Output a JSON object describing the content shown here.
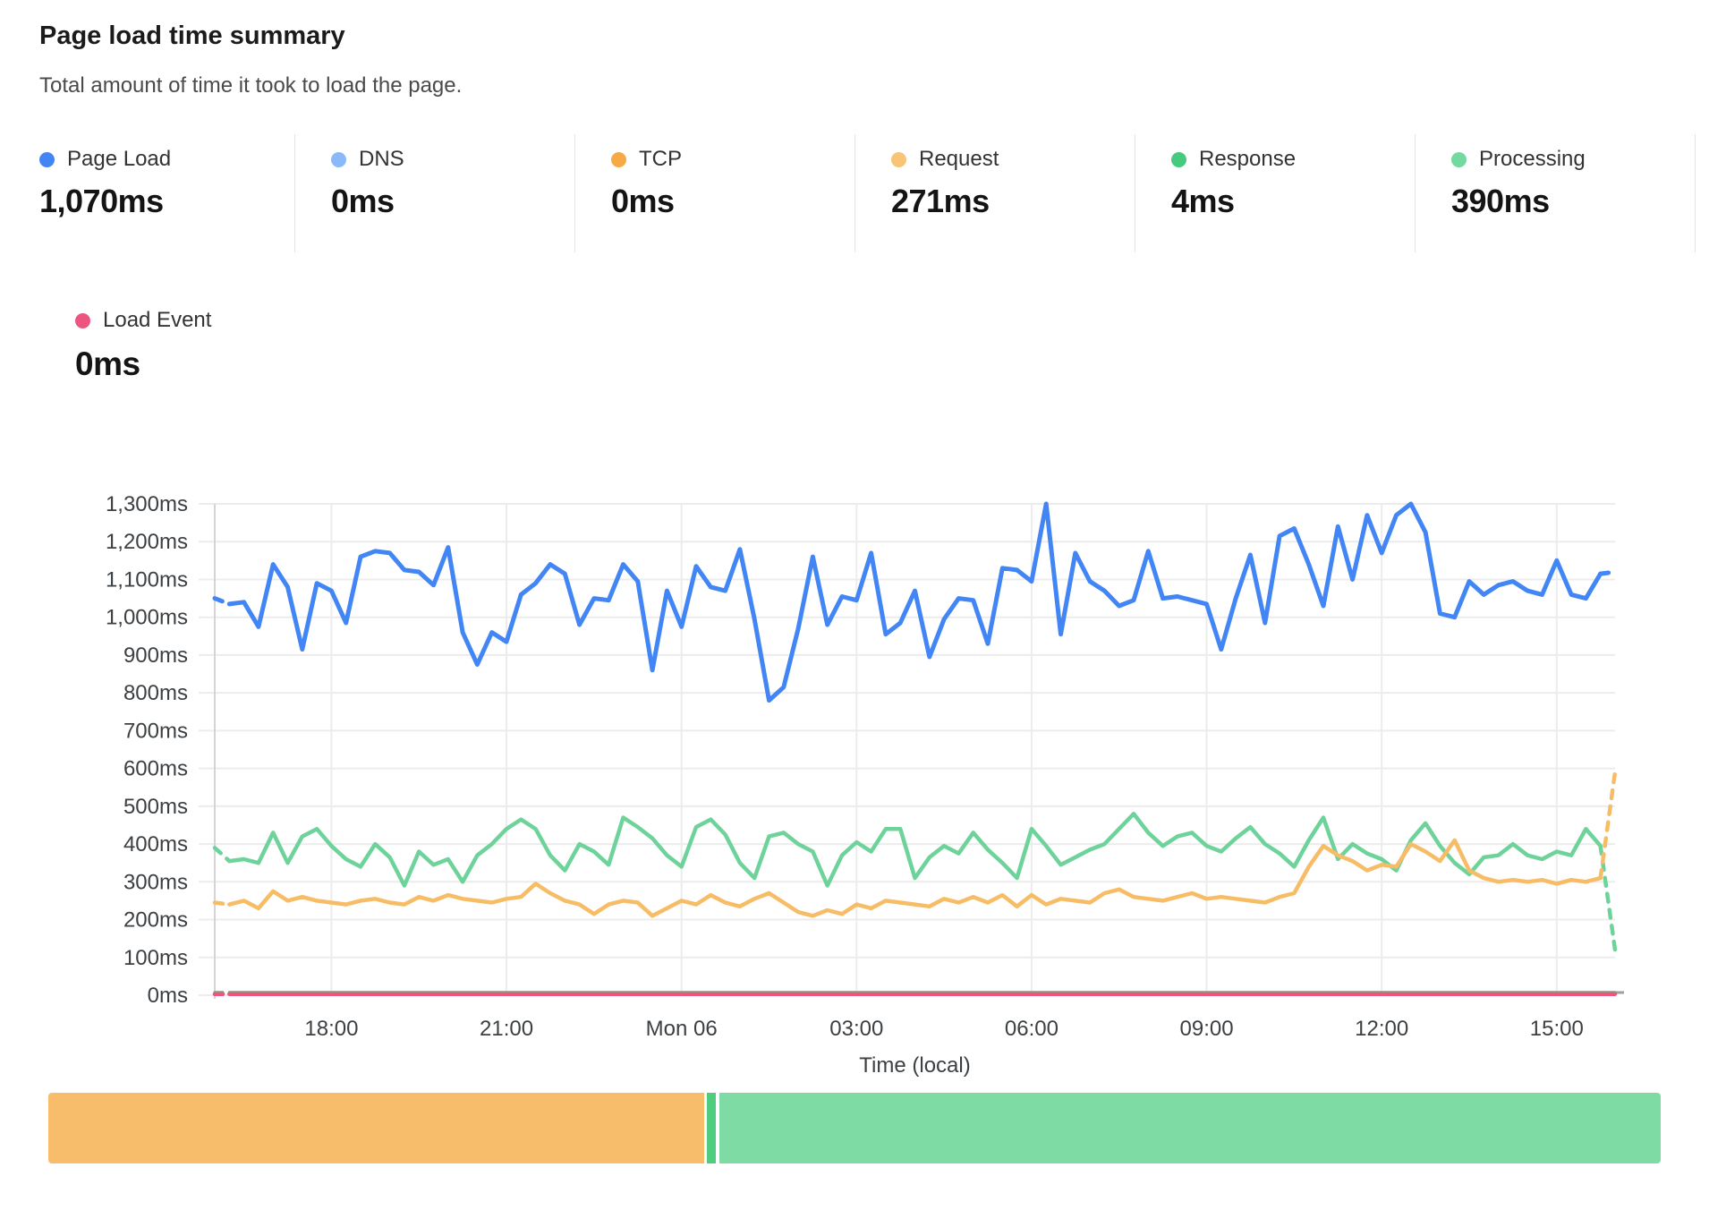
{
  "header": {
    "title": "Page load time summary",
    "subtitle": "Total amount of time it took to load the page."
  },
  "stats": [
    {
      "label": "Page Load",
      "value": "1,070ms",
      "color": "#4285f4"
    },
    {
      "label": "DNS",
      "value": "0ms",
      "color": "#8ab9f9"
    },
    {
      "label": "TCP",
      "value": "0ms",
      "color": "#f5a947"
    },
    {
      "label": "Request",
      "value": "271ms",
      "color": "#f8c577"
    },
    {
      "label": "Response",
      "value": "4ms",
      "color": "#47c97e"
    },
    {
      "label": "Processing",
      "value": "390ms",
      "color": "#74d9a0"
    }
  ],
  "load_event": {
    "label": "Load Event",
    "value": "0ms",
    "color": "#ed5480"
  },
  "chart_data": {
    "type": "line",
    "title": "Page load time summary",
    "xlabel": "Time (local)",
    "ylim": [
      0,
      1300
    ],
    "n": 97,
    "grid": true,
    "y_axis": {
      "min": 0,
      "max": 1300,
      "step": 100,
      "suffix": "ms"
    },
    "x_ticks": [
      {
        "label": "18:00",
        "i": 8
      },
      {
        "label": "21:00",
        "i": 20
      },
      {
        "label": "Mon 06",
        "i": 32
      },
      {
        "label": "03:00",
        "i": 44
      },
      {
        "label": "06:00",
        "i": 56
      },
      {
        "label": "09:00",
        "i": 68
      },
      {
        "label": "12:00",
        "i": 80
      },
      {
        "label": "15:00",
        "i": 92
      }
    ],
    "series": [
      {
        "name": "Page Load",
        "color": "#4285f4",
        "width": 5,
        "dash_first": true,
        "dash_last": true,
        "values": [
          1050,
          1035,
          1040,
          975,
          1140,
          1080,
          915,
          1090,
          1070,
          985,
          1160,
          1175,
          1170,
          1125,
          1120,
          1085,
          1185,
          960,
          875,
          960,
          935,
          1060,
          1090,
          1140,
          1115,
          980,
          1050,
          1045,
          1140,
          1095,
          860,
          1070,
          975,
          1135,
          1080,
          1070,
          1180,
          995,
          780,
          815,
          970,
          1160,
          980,
          1055,
          1045,
          1170,
          955,
          985,
          1070,
          895,
          995,
          1050,
          1045,
          930,
          1130,
          1125,
          1095,
          1300,
          955,
          1170,
          1095,
          1070,
          1030,
          1045,
          1175,
          1050,
          1055,
          1045,
          1035,
          915,
          1050,
          1165,
          985,
          1215,
          1235,
          1140,
          1030,
          1240,
          1100,
          1270,
          1170,
          1270,
          1300,
          1225,
          1010,
          1000,
          1095,
          1060,
          1085,
          1095,
          1070,
          1060,
          1150,
          1060,
          1050,
          1115,
          1120
        ]
      },
      {
        "name": "Processing",
        "color": "#6ed39a",
        "width": 4.5,
        "dash_first": true,
        "dash_last": true,
        "values": [
          390,
          355,
          360,
          350,
          430,
          350,
          420,
          440,
          395,
          360,
          340,
          400,
          365,
          290,
          380,
          345,
          360,
          300,
          370,
          400,
          440,
          465,
          440,
          370,
          330,
          400,
          380,
          345,
          470,
          445,
          415,
          370,
          340,
          445,
          465,
          425,
          350,
          310,
          420,
          430,
          400,
          380,
          290,
          370,
          405,
          380,
          440,
          440,
          310,
          365,
          395,
          375,
          430,
          385,
          350,
          310,
          440,
          395,
          345,
          365,
          385,
          400,
          440,
          480,
          430,
          395,
          420,
          430,
          395,
          380,
          415,
          445,
          400,
          375,
          340,
          410,
          470,
          360,
          400,
          375,
          360,
          330,
          410,
          455,
          395,
          350,
          320,
          365,
          370,
          400,
          370,
          360,
          380,
          370,
          440,
          395,
          120
        ]
      },
      {
        "name": "Request",
        "color": "#f7bc66",
        "width": 4.5,
        "dash_first": true,
        "dash_last": true,
        "values": [
          245,
          240,
          250,
          230,
          275,
          250,
          260,
          250,
          245,
          240,
          250,
          255,
          245,
          240,
          260,
          250,
          265,
          255,
          250,
          245,
          255,
          260,
          295,
          270,
          250,
          240,
          215,
          240,
          250,
          245,
          210,
          230,
          250,
          240,
          265,
          245,
          235,
          255,
          270,
          245,
          220,
          210,
          225,
          215,
          240,
          230,
          250,
          245,
          240,
          235,
          255,
          245,
          260,
          245,
          265,
          235,
          265,
          240,
          255,
          250,
          245,
          270,
          280,
          260,
          255,
          250,
          260,
          270,
          255,
          260,
          255,
          250,
          245,
          260,
          270,
          340,
          395,
          370,
          355,
          330,
          345,
          340,
          400,
          380,
          355,
          410,
          330,
          310,
          300,
          305,
          300,
          305,
          295,
          305,
          300,
          310,
          590
        ]
      },
      {
        "name": "Response",
        "color": "#52c982",
        "width": 3,
        "dash_first": true,
        "dash_last": false,
        "flat": 8
      },
      {
        "name": "Load Event",
        "color": "#ed5480",
        "width": 4.5,
        "dash_first": true,
        "dash_last": false,
        "flat": 3
      }
    ],
    "legend_position": "top",
    "colors": {
      "gridline": "#ececec",
      "axis_boundary": "#d4d4d4",
      "axis_text": "#3c4043"
    }
  },
  "bottom_bar": {
    "segments": [
      {
        "name": "request-phase",
        "color": "#f8bd6b",
        "width": "40.7%"
      },
      {
        "name": "gap",
        "color": "#ffffff",
        "width": "0.17%"
      },
      {
        "name": "marker",
        "color": "#50cc7f",
        "width": "0.55%"
      },
      {
        "name": "gap",
        "color": "#ffffff",
        "width": "0.22%"
      },
      {
        "name": "processing-phase",
        "color": "#7edba4",
        "width": "58.36%"
      }
    ]
  }
}
